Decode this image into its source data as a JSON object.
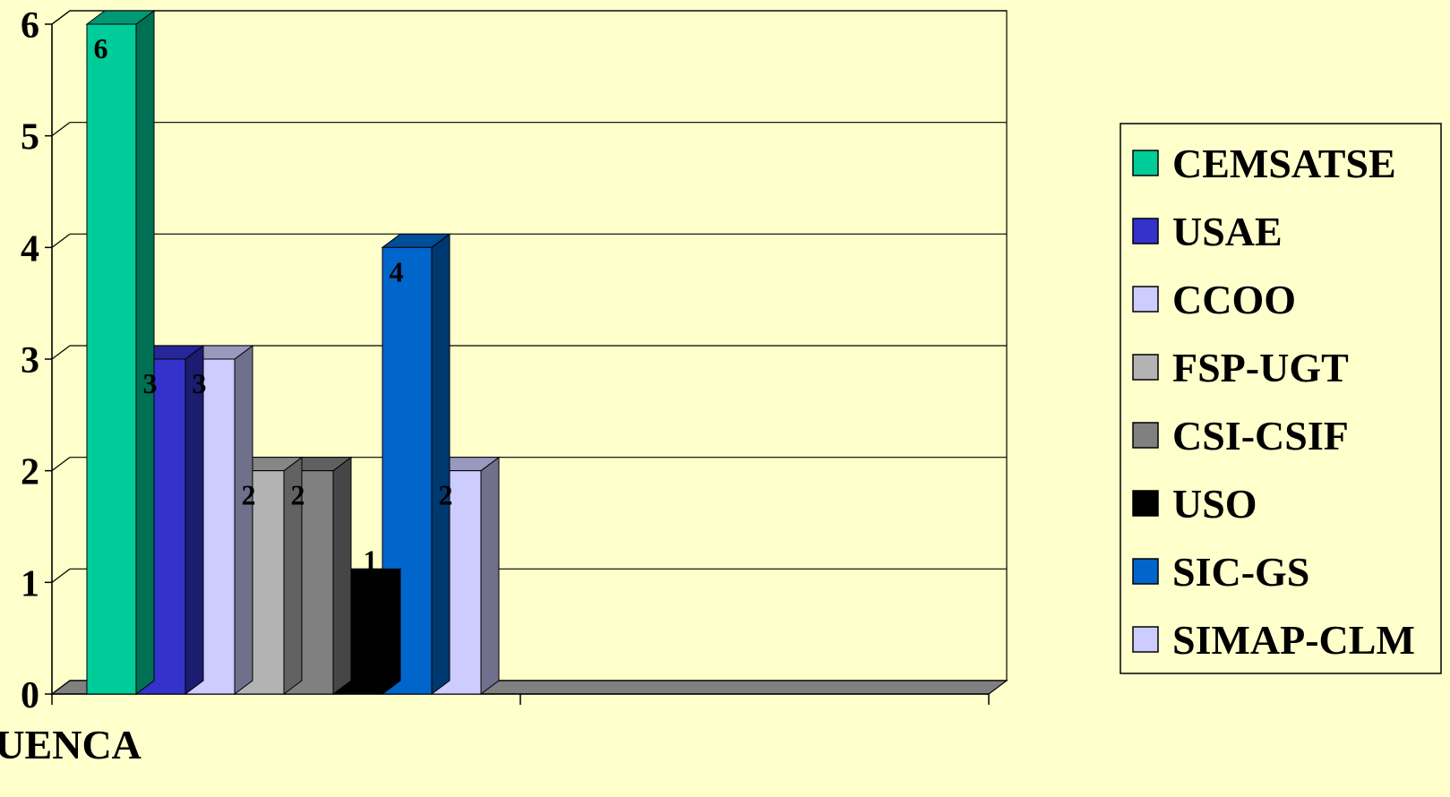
{
  "chart_data": {
    "type": "bar",
    "style": "3d-clustered",
    "categories": [
      "CUENCA",
      ""
    ],
    "series": [
      {
        "name": "CEMSATSE",
        "values": [
          6,
          null
        ],
        "color": "#00cc99"
      },
      {
        "name": "USAE",
        "values": [
          3,
          null
        ],
        "color": "#3333cc"
      },
      {
        "name": "CCOO",
        "values": [
          3,
          null
        ],
        "color": "#ccccff"
      },
      {
        "name": "FSP-UGT",
        "values": [
          2,
          null
        ],
        "color": "#b3b3b3"
      },
      {
        "name": "CSI-CSIF",
        "values": [
          2,
          null
        ],
        "color": "#808080"
      },
      {
        "name": "USO",
        "values": [
          1,
          null
        ],
        "color": "#000000"
      },
      {
        "name": "SIC-GS",
        "values": [
          4,
          null
        ],
        "color": "#0066cc"
      },
      {
        "name": "SIMAP-CLM",
        "values": [
          2,
          null
        ],
        "color": "#ccccff"
      }
    ],
    "yticks": [
      0,
      1,
      2,
      3,
      4,
      5,
      6
    ],
    "ylim": [
      0,
      6
    ],
    "title": "",
    "xlabel": "",
    "ylabel": "",
    "grid": true,
    "legend_position": "right",
    "data_labels": true,
    "colors": {
      "background": "#ffffcc",
      "plot_wall": "#ffffcc",
      "floor": "#808080",
      "gridline": "#000000"
    }
  }
}
